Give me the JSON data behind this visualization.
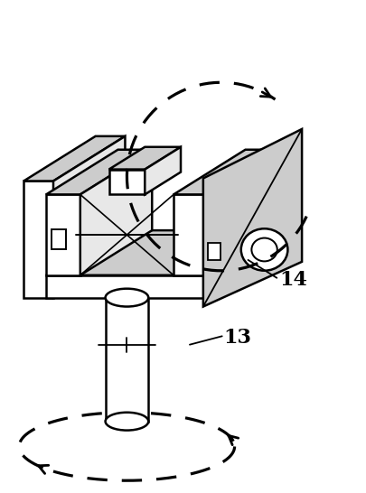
{
  "fig_width": 4.06,
  "fig_height": 5.46,
  "dpi": 100,
  "bg_color": "#ffffff",
  "line_color": "#000000",
  "fill_light": "#e8e8e8",
  "fill_hatch": "#cccccc",
  "label_fontsize": 16,
  "lw": 1.8
}
